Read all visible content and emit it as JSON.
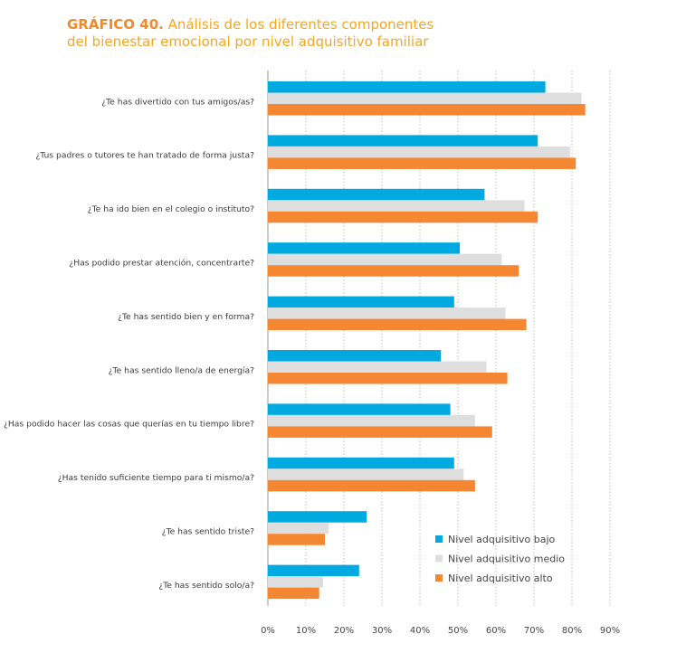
{
  "header": {
    "number": "GRÁFICO 40.",
    "line1": "Análisis de los diferentes componentes",
    "line2": "del bienestar emocional por nivel adquisitivo familiar"
  },
  "chart_data": {
    "type": "bar",
    "orientation": "horizontal",
    "title": "GRÁFICO 40. Análisis de los diferentes componentes del bienestar emocional por nivel adquisitivo familiar",
    "categories": [
      "¿Te has divertido con tus amigos/as?",
      "¿Tus padres o tutores te han tratado de forma justa?",
      "¿Te ha ido bien en el colegio o instituto?",
      "¿Has podido prestar atención, concentrarte?",
      "¿Te has sentido bien y en forma?",
      "¿Te has sentido lleno/a de energía?",
      "¿Has podido hacer las cosas que querías en tu tiempo libre?",
      "¿Has tenido suficiente tiempo para ti mismo/a?",
      "¿Te has sentido triste?",
      "¿Te has sentido solo/a?"
    ],
    "series": [
      {
        "name": "Nivel adquisitivo bajo",
        "color": "#00a9e0",
        "values": [
          73,
          71,
          57,
          50.5,
          49,
          45.5,
          48,
          49,
          26,
          24
        ]
      },
      {
        "name": "Nivel adquisitivo medio",
        "color": "#dedede",
        "values": [
          82.5,
          79.5,
          67.5,
          61.5,
          62.5,
          57.5,
          54.5,
          51.5,
          16,
          14.5
        ]
      },
      {
        "name": "Nivel adquisitivo alto",
        "color": "#f58733",
        "values": [
          83.5,
          81,
          71,
          66,
          68,
          63,
          59,
          54.5,
          15,
          13.5
        ]
      }
    ],
    "xlim": [
      0,
      90
    ],
    "xticks": [
      "0%",
      "10%",
      "20%",
      "30%",
      "40%",
      "50%",
      "60%",
      "70%",
      "80%",
      "90%"
    ],
    "grid": "vertical dotted",
    "legend_position": "bottom-right"
  }
}
